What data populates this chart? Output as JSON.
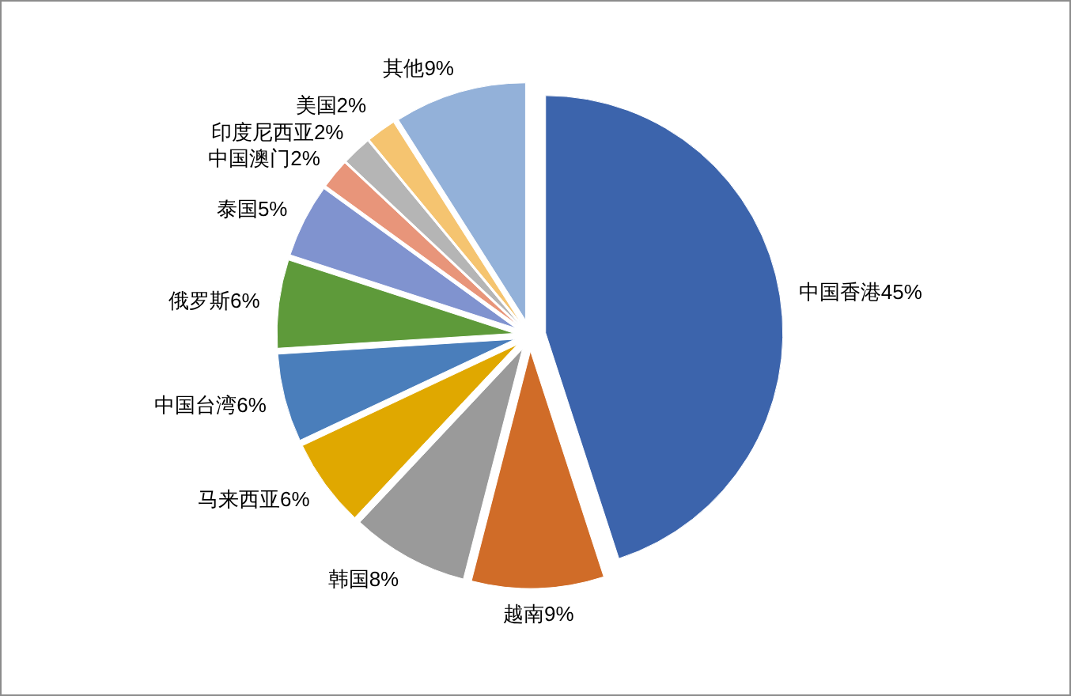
{
  "chart_data": {
    "type": "pie",
    "categories": [
      "中国香港",
      "越南",
      "韩国",
      "马来西亚",
      "中国台湾",
      "俄罗斯",
      "泰国",
      "中国澳门",
      "印度尼西亚",
      "美国",
      "其他"
    ],
    "values": [
      45,
      9,
      8,
      6,
      6,
      6,
      5,
      2,
      2,
      2,
      9
    ],
    "value_labels": [
      "45%",
      "9%",
      "8%",
      "6%",
      "6%",
      "6%",
      "5%",
      "2%",
      "2%",
      "2%",
      "9%"
    ],
    "colors": [
      "#3c64ac",
      "#d06c28",
      "#9a9a9a",
      "#e0a800",
      "#4a7ebb",
      "#5e9a3a",
      "#8093cf",
      "#e8957a",
      "#b5b5b5",
      "#f5c470",
      "#93b1d9"
    ]
  }
}
